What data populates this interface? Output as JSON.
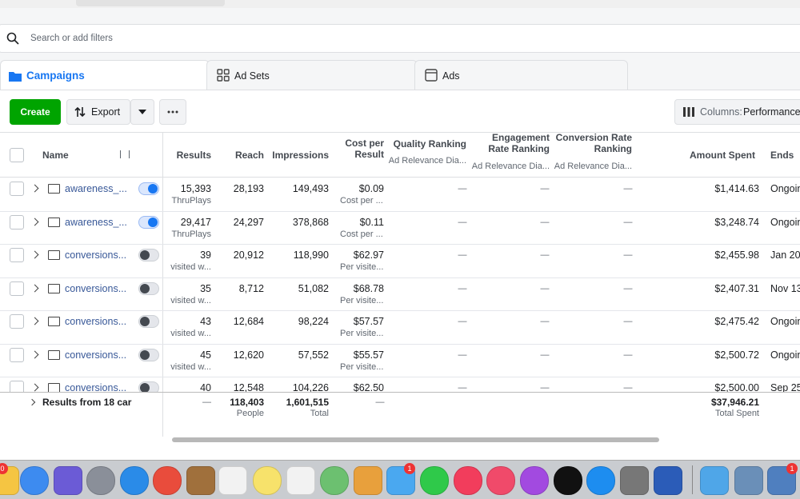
{
  "search": {
    "placeholder": "Search or add filters"
  },
  "tabs": [
    "Campaigns",
    "Ad Sets",
    "Ads"
  ],
  "toolbar": {
    "create": "Create",
    "export": "Export",
    "columns_label": "Columns:",
    "columns_value": "Performance"
  },
  "table": {
    "headers": [
      {
        "label": "Name"
      },
      {
        "label": "Results"
      },
      {
        "label": "Reach"
      },
      {
        "label": "Impressions"
      },
      {
        "label": "Cost per Result"
      },
      {
        "label": "Quality Ranking",
        "sub": "Ad Relevance Dia..."
      },
      {
        "label": "Engagement Rate Ranking",
        "sub": "Ad Relevance Dia..."
      },
      {
        "label": "Conversion Rate Ranking",
        "sub": "Ad Relevance Dia..."
      },
      {
        "label": "Amount Spent"
      },
      {
        "label": "Ends"
      }
    ],
    "rows": [
      {
        "name": "awareness_...",
        "active": true,
        "results": "15,393",
        "results_note": "ThruPlays",
        "reach": "28,193",
        "impressions": "149,493",
        "cost": "$0.09",
        "cost_note": "Cost per ...",
        "quality": "—",
        "engagement": "—",
        "conversion": "—",
        "amount": "$1,414.63",
        "ends": "Ongoin"
      },
      {
        "name": "awareness_...",
        "active": true,
        "results": "29,417",
        "results_note": "ThruPlays",
        "reach": "24,297",
        "impressions": "378,868",
        "cost": "$0.11",
        "cost_note": "Cost per ...",
        "quality": "—",
        "engagement": "—",
        "conversion": "—",
        "amount": "$3,248.74",
        "ends": "Ongoin"
      },
      {
        "name": "conversions...",
        "active": false,
        "results": "39",
        "results_note": "visited w...",
        "reach": "20,912",
        "impressions": "118,990",
        "cost": "$62.97",
        "cost_note": "Per visite...",
        "quality": "—",
        "engagement": "—",
        "conversion": "—",
        "amount": "$2,455.98",
        "ends": "Jan 20"
      },
      {
        "name": "conversions...",
        "active": false,
        "results": "35",
        "results_note": "visited w...",
        "reach": "8,712",
        "impressions": "51,082",
        "cost": "$68.78",
        "cost_note": "Per visite...",
        "quality": "—",
        "engagement": "—",
        "conversion": "—",
        "amount": "$2,407.31",
        "ends": "Nov 13"
      },
      {
        "name": "conversions...",
        "active": false,
        "results": "43",
        "results_note": "visited w...",
        "reach": "12,684",
        "impressions": "98,224",
        "cost": "$57.57",
        "cost_note": "Per visite...",
        "quality": "—",
        "engagement": "—",
        "conversion": "—",
        "amount": "$2,475.42",
        "ends": "Ongoin"
      },
      {
        "name": "conversions...",
        "active": false,
        "results": "45",
        "results_note": "visited w...",
        "reach": "12,620",
        "impressions": "57,552",
        "cost": "$55.57",
        "cost_note": "Per visite...",
        "quality": "—",
        "engagement": "—",
        "conversion": "—",
        "amount": "$2,500.72",
        "ends": "Ongoin"
      },
      {
        "name": "conversions...",
        "active": false,
        "results": "40",
        "reach": "12,548",
        "impressions": "104,226",
        "cost": "$62.50",
        "quality": "—",
        "engagement": "—",
        "conversion": "—",
        "amount": "$2,500.00",
        "ends": "Sep 25"
      }
    ],
    "summary": {
      "label": "Results from 18 car",
      "results": "—",
      "reach": "118,403",
      "reach_note": "People",
      "impressions": "1,601,515",
      "impressions_note": "Total",
      "cost": "—",
      "amount": "$37,946.21",
      "amount_note": "Total Spent"
    }
  },
  "dock": {
    "badges": [
      "0",
      "1",
      "1"
    ]
  }
}
